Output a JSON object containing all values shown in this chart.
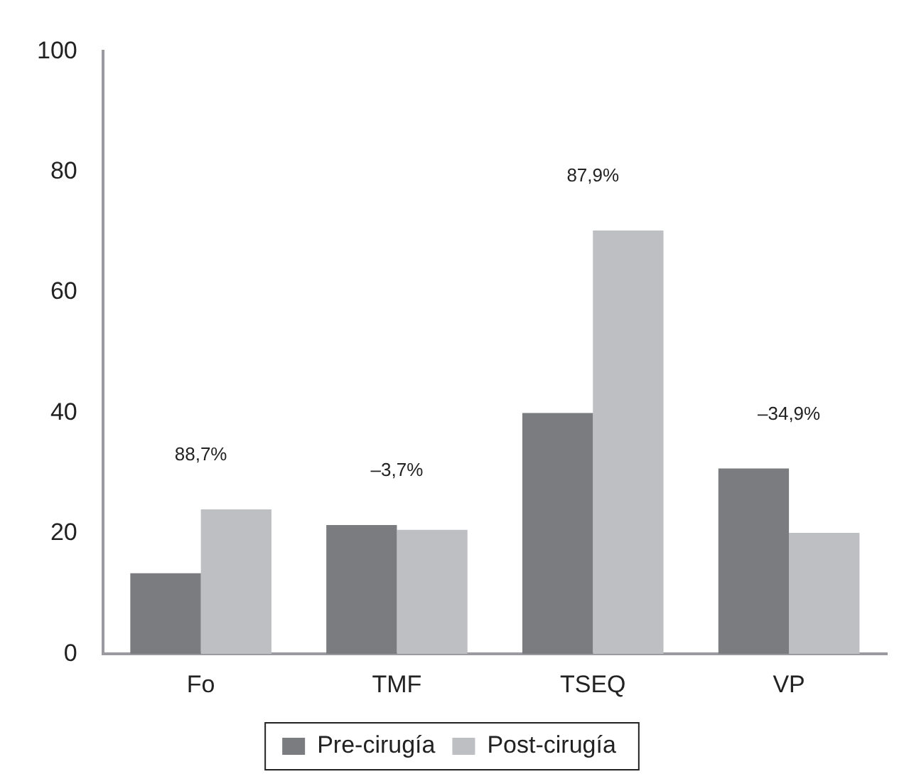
{
  "chart_data": {
    "type": "bar",
    "categories": [
      "Fo",
      "TMF",
      "TSEQ",
      "VP"
    ],
    "series": [
      {
        "name": "Pre-cirugía",
        "color": "#7b7c80",
        "values": [
          13.4,
          21.4,
          40.0,
          30.8
        ]
      },
      {
        "name": "Post-cirugía",
        "color": "#bebfc3",
        "values": [
          24.0,
          20.6,
          70.3,
          20.1
        ]
      }
    ],
    "ylim": [
      0,
      100
    ],
    "yticks": [
      0,
      20,
      40,
      60,
      80,
      100
    ],
    "grid": false,
    "legend": "bottom",
    "annotations": [
      "88,7%",
      "–3,7%",
      "87,9%",
      "–34,9%"
    ]
  }
}
